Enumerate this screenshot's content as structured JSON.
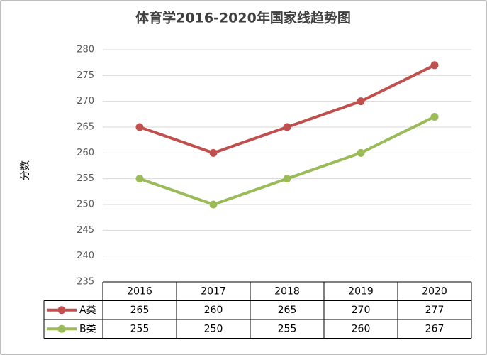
{
  "chart_data": {
    "type": "line",
    "title": "体育学2016-2020年国家线趋势图",
    "y_label": "分数",
    "categories": [
      "2016",
      "2017",
      "2018",
      "2019",
      "2020"
    ],
    "series": [
      {
        "name": "A类",
        "color": "#c0504d",
        "values": [
          265,
          260,
          265,
          270,
          277
        ]
      },
      {
        "name": "B类",
        "color": "#9bbb59",
        "values": [
          255,
          250,
          255,
          260,
          267
        ]
      }
    ],
    "ylim": [
      235,
      280
    ],
    "yticks": [
      235,
      240,
      245,
      250,
      255,
      260,
      265,
      270,
      275,
      280
    ],
    "grid": true,
    "data_table": true
  }
}
